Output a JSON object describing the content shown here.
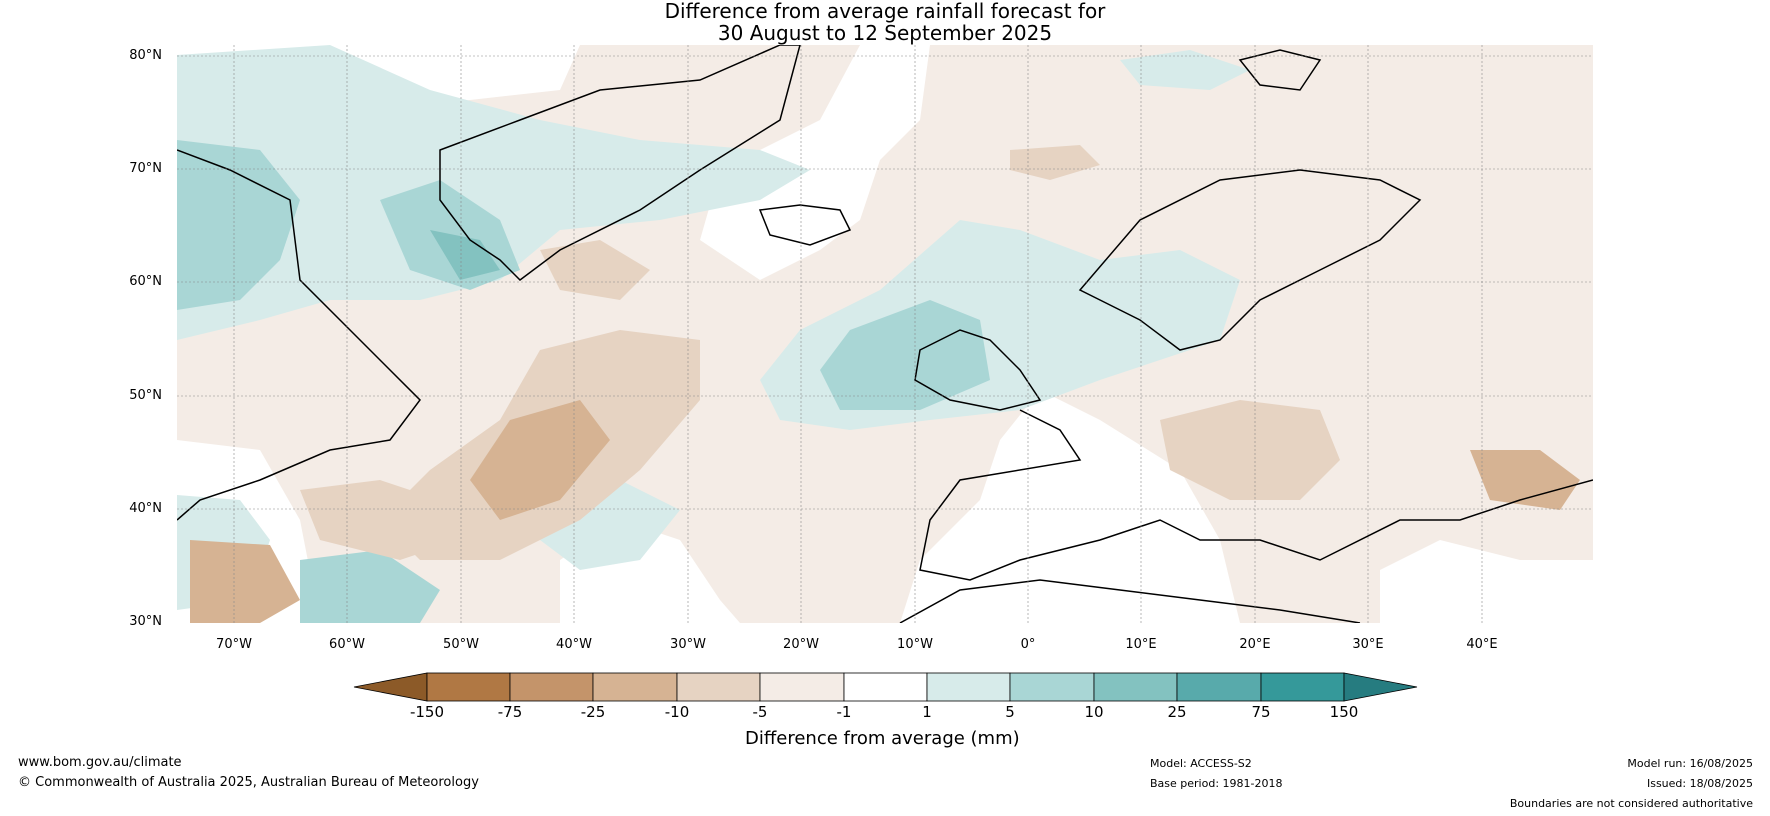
{
  "title": {
    "line1": "Difference from average rainfall forecast for",
    "line2": "30 August to 12 September 2025"
  },
  "map": {
    "region": "North Atlantic and Europe",
    "latitude_labels": [
      "80°N",
      "70°N",
      "60°N",
      "50°N",
      "40°N",
      "30°N"
    ],
    "longitude_labels": [
      "70°W",
      "60°W",
      "50°W",
      "40°W",
      "30°W",
      "20°W",
      "10°W",
      "0°",
      "10°E",
      "20°E",
      "30°E",
      "40°E"
    ],
    "grid": true
  },
  "colorbar": {
    "title": "Difference from average (mm)",
    "ticks": [
      "-150",
      "-75",
      "-25",
      "-10",
      "-5",
      "-1",
      "1",
      "5",
      "10",
      "25",
      "75",
      "150"
    ],
    "colors": [
      "#8c5a28",
      "#b07844",
      "#c4946a",
      "#d6b393",
      "#e6d3c2",
      "#f4ece6",
      "#ffffff",
      "#d7ebea",
      "#a9d6d5",
      "#83c2c0",
      "#58aaab",
      "#35999a",
      "#267c80"
    ]
  },
  "footer": {
    "website": "www.bom.gov.au/climate",
    "copyright": "© Commonwealth of Australia 2025, Australian Bureau of Meteorology",
    "model": "Model: ACCESS-S2",
    "base_period": "Base period: 1981-2018",
    "model_run": "Model run: 16/08/2025",
    "issued": "Issued: 18/08/2025",
    "disclaimer": "Boundaries are not considered authoritative"
  }
}
